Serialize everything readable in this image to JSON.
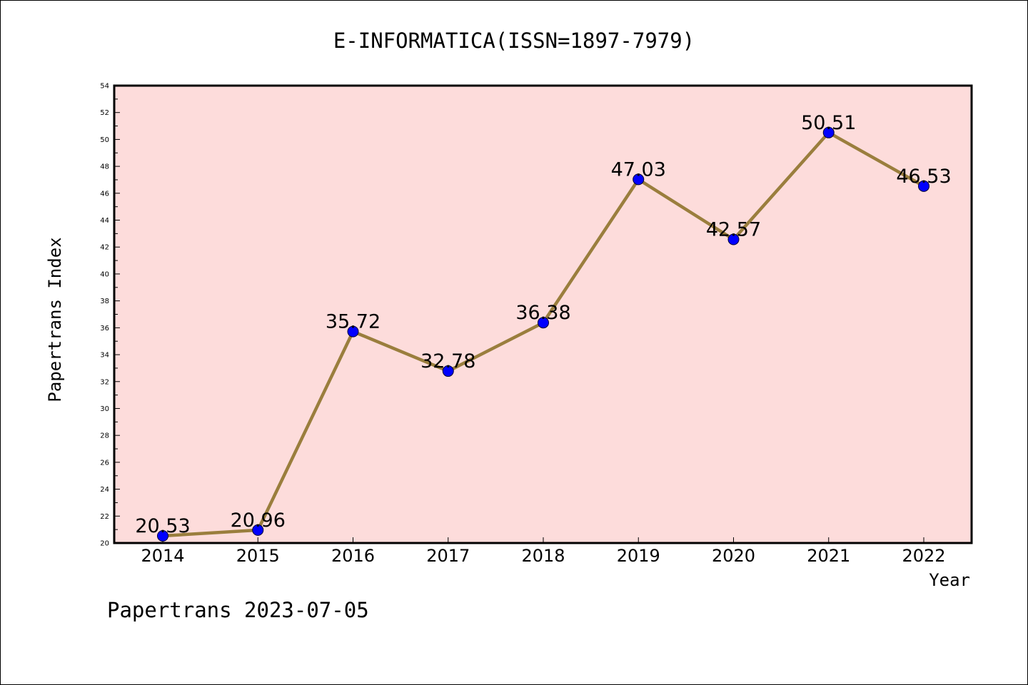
{
  "chart_data": {
    "type": "line",
    "title": "E-INFORMATICA(ISSN=1897-7979)",
    "xlabel": "Year",
    "ylabel": "Papertrans Index",
    "categories": [
      "2014",
      "2015",
      "2016",
      "2017",
      "2018",
      "2019",
      "2020",
      "2021",
      "2022"
    ],
    "series": [
      {
        "values": [
          20.53,
          20.96,
          35.72,
          32.78,
          36.38,
          47.03,
          42.57,
          50.51,
          46.53
        ],
        "labels": [
          "20.53",
          "20.96",
          "35.72",
          "32.78",
          "36.38",
          "47.03",
          "42.57",
          "50.51",
          "46.53"
        ],
        "line_color": "#9a7e3d",
        "marker_color": "#0000ff"
      }
    ],
    "ylim": [
      20,
      54
    ],
    "yticks": [
      20,
      22,
      24,
      26,
      28,
      30,
      32,
      34,
      36,
      38,
      40,
      42,
      44,
      46,
      48,
      50,
      52,
      54
    ],
    "plot_background": "#fddcdb",
    "grid": false,
    "legend": "none"
  },
  "footer": {
    "text": "Papertrans 2023-07-05"
  }
}
